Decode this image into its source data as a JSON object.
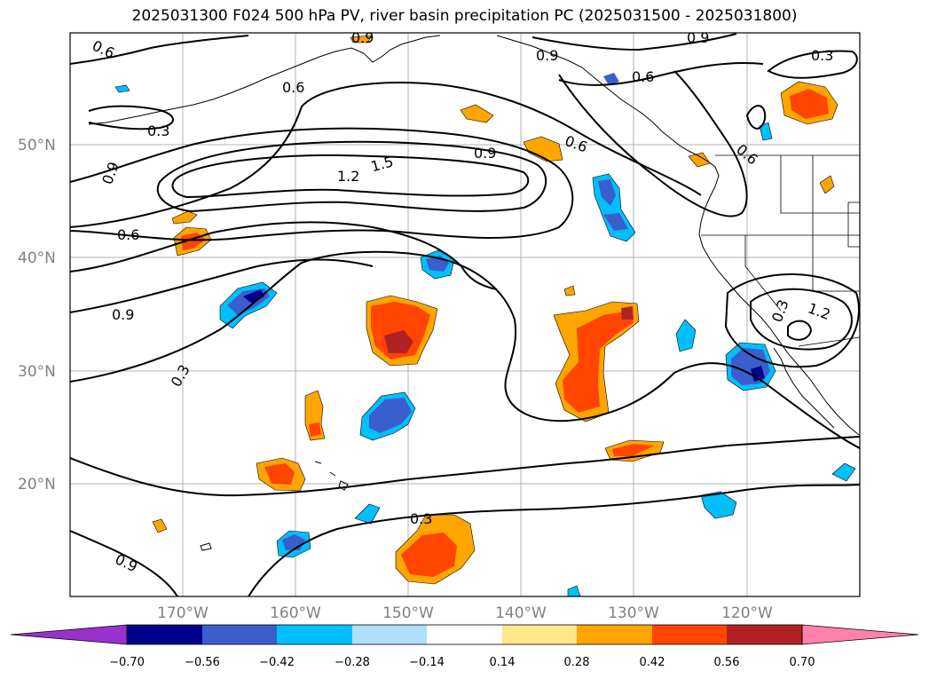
{
  "title": "2025031300 F024 500 hPa PV, river basin precipitation PC (2025031500 - 2025031800)",
  "map": {
    "lat_labels": [
      "50°N",
      "40°N",
      "30°N",
      "20°N"
    ],
    "lon_labels": [
      "170°W",
      "160°W",
      "150°W",
      "140°W",
      "130°W",
      "120°W"
    ],
    "contour_labels": [
      "0.6",
      "0.9",
      "0.3",
      "0.9",
      "0.6",
      "0.9",
      "0.6",
      "1.5",
      "1.2",
      "0.9",
      "0.6",
      "0.6",
      "0.9",
      "0.3",
      "0.3",
      "0.3",
      "0.9",
      "1.2",
      "0.6",
      "0.9",
      "0.3"
    ],
    "colors": {
      "neg_070": "#9932cc",
      "neg_056": "#00008b",
      "neg_042": "#3a5fcd",
      "neg_028": "#00bfff",
      "neg_014": "#afe0f8",
      "neutral": "#ffffff",
      "pos_014": "#ffe78a",
      "pos_028": "#ffa500",
      "pos_042": "#ff4500",
      "pos_056": "#b22222",
      "pos_070": "#ff82ab"
    }
  },
  "colorbar": {
    "tick_labels": [
      "−0.70",
      "−0.56",
      "−0.42",
      "−0.28",
      "−0.14",
      "0.14",
      "0.28",
      "0.42",
      "0.56",
      "0.70"
    ],
    "levels": [
      -0.7,
      -0.56,
      -0.42,
      -0.28,
      -0.14,
      0.14,
      0.28,
      0.42,
      0.56,
      0.7
    ]
  }
}
